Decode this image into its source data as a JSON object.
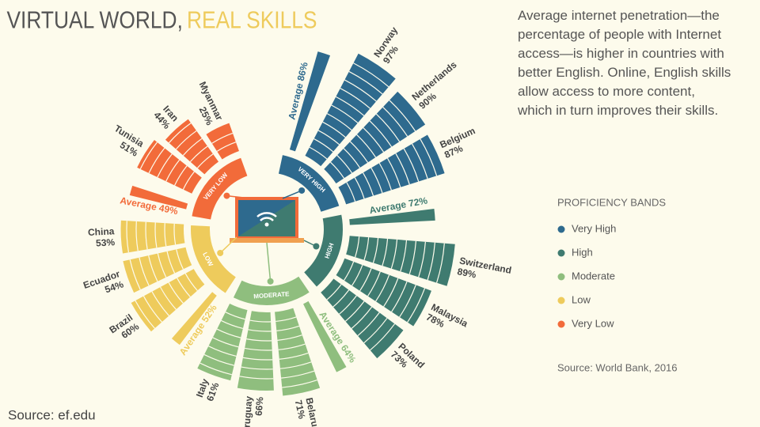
{
  "chart_data": {
    "type": "radial_bar",
    "title": "VIRTUAL WORLD,",
    "title_highlight": "REAL SKILLS",
    "description": [
      "Average internet penetration—the",
      "percentage of people with Internet",
      "access—is higher in countries with",
      "better English. Online, English skills",
      "allow access to more content,",
      "which in turn  improves their skills."
    ],
    "legend_title": "PROFICIENCY BANDS",
    "source": "Source: World Bank, 2016",
    "credit": "Source: ef.edu",
    "ylim": [
      0,
      100
    ],
    "series": [
      {
        "name": "Very High",
        "band_label": "VERY HIGH",
        "color": "#2e6a8e",
        "average": 86,
        "average_label": "Average 86%",
        "categories": [
          "Norway",
          "Netherlands",
          "Belgium"
        ],
        "values": [
          97,
          90,
          87
        ],
        "value_labels": [
          "97%",
          "90%",
          "87%"
        ]
      },
      {
        "name": "High",
        "band_label": "HIGH",
        "color": "#3f7b70",
        "average": 72,
        "average_label": "Average 72%",
        "categories": [
          "Switzerland",
          "Malaysia",
          "Poland"
        ],
        "values": [
          89,
          78,
          73
        ],
        "value_labels": [
          "89%",
          "78%",
          "73%"
        ]
      },
      {
        "name": "Moderate",
        "band_label": "MODERATE",
        "color": "#8fbe7e",
        "average": 64,
        "average_label": "Average 64%",
        "categories": [
          "Belarus",
          "Uruguay",
          "Italy"
        ],
        "values": [
          71,
          66,
          61
        ],
        "value_labels": [
          "71%",
          "66%",
          "61%"
        ]
      },
      {
        "name": "Low",
        "band_label": "LOW",
        "color": "#eecb5c",
        "average": 52,
        "average_label": "Average 52%",
        "categories": [
          "Brazil",
          "Ecuador",
          "China"
        ],
        "values": [
          60,
          54,
          53
        ],
        "value_labels": [
          "60%",
          "54%",
          "53%"
        ]
      },
      {
        "name": "Very Low",
        "band_label": "VERY LOW",
        "color": "#f26b3a",
        "average": 49,
        "average_label": "Average 49%",
        "categories": [
          "Tunisia",
          "Iran",
          "Myanmar"
        ],
        "values": [
          51,
          44,
          25
        ],
        "value_labels": [
          "51%",
          "44%",
          "25%"
        ]
      }
    ]
  }
}
